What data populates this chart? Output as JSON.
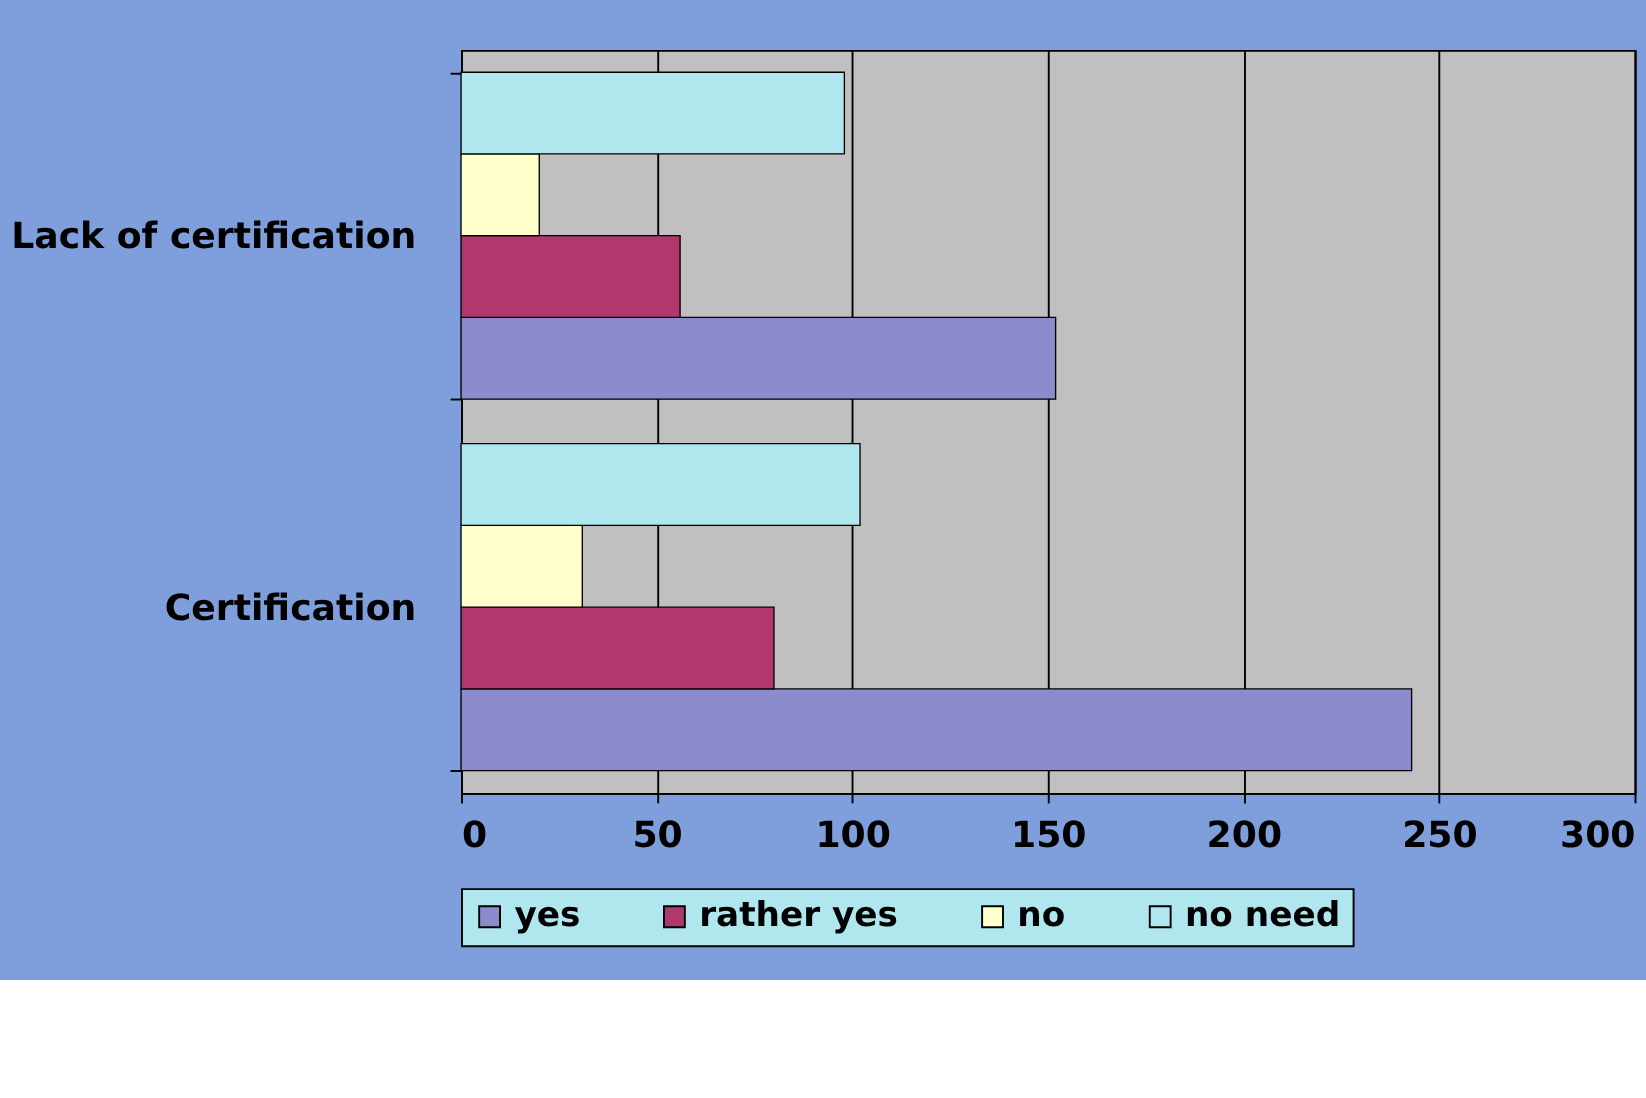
{
  "chart_data": {
    "type": "bar",
    "orientation": "horizontal",
    "categories": [
      "Lack of certification",
      "Certification"
    ],
    "series": [
      {
        "name": "yes",
        "color": "#8c8ccc",
        "values": [
          152,
          243
        ]
      },
      {
        "name": "rather yes",
        "color": "#b0386c",
        "values": [
          56,
          80
        ]
      },
      {
        "name": "no",
        "color": "#ffffcc",
        "values": [
          20,
          31
        ]
      },
      {
        "name": "no need",
        "color": "#b0e6ee",
        "values": [
          98,
          102
        ]
      }
    ],
    "xlim": [
      0,
      300
    ],
    "xticks": [
      0,
      50,
      100,
      150,
      200,
      250,
      300
    ],
    "grid": "x",
    "legend": "bottom"
  }
}
